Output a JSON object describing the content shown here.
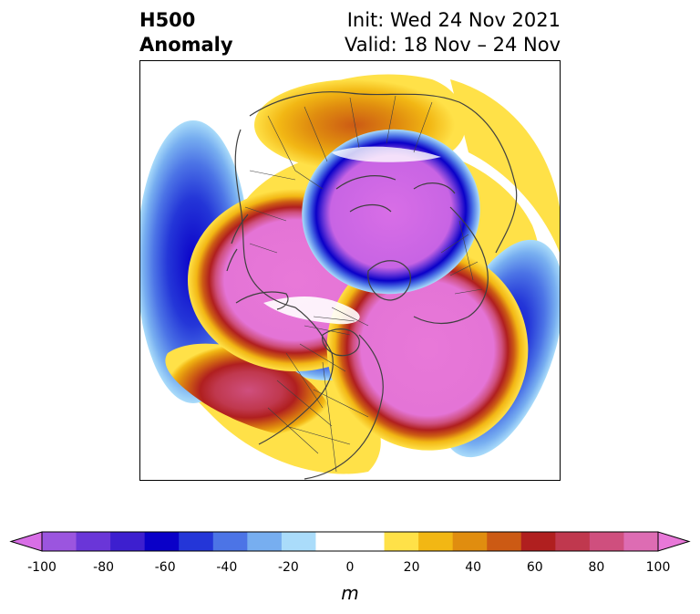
{
  "title": {
    "line1": "H500",
    "line2": "Anomaly",
    "init": "Init: Wed 24 Nov 2021",
    "valid": "Valid: 18 Nov – 24 Nov"
  },
  "colorbar": {
    "unit": "m",
    "min": -100,
    "max": 100,
    "ticks": [
      "-100",
      "-80",
      "-60",
      "-40",
      "-20",
      "0",
      "20",
      "40",
      "60",
      "80",
      "100"
    ],
    "colors": [
      "#d86ee6",
      "#9b55df",
      "#6a36d8",
      "#3d1fcf",
      "#0a00c8",
      "#2436d8",
      "#4c74e6",
      "#77aef0",
      "#aadcfa",
      "#ffffff",
      "#ffffff",
      "#ffe148",
      "#f2b714",
      "#e08d0f",
      "#cc5a14",
      "#b01f1f",
      "#c0384e",
      "#cf4f7e",
      "#dd6cb3",
      "#e878d8"
    ]
  },
  "map": {
    "features": [
      {
        "name": "pole-low",
        "sign": "negative",
        "peak": -100
      },
      {
        "name": "greenland-high",
        "sign": "positive",
        "peak": 100
      },
      {
        "name": "siberia-high",
        "sign": "positive",
        "peak": 100
      },
      {
        "name": "pacific-low",
        "sign": "negative",
        "peak": -60
      },
      {
        "name": "north-atlantic-low",
        "sign": "negative",
        "peak": -60
      },
      {
        "name": "east-asia-low",
        "sign": "negative",
        "peak": -60
      },
      {
        "name": "north-america-high",
        "sign": "positive",
        "peak": 80
      },
      {
        "name": "europe-high",
        "sign": "positive",
        "peak": 50
      }
    ]
  }
}
